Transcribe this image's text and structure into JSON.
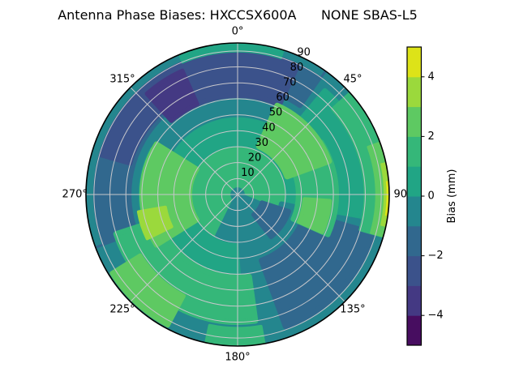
{
  "title": "Antenna Phase Biases: HXCCSX600A      NONE SBAS-L5",
  "chart_data": {
    "type": "heatmap",
    "subtype": "polar-filled-contour",
    "title": "Antenna Phase Biases: HXCCSX600A      NONE SBAS-L5",
    "angle_ticks": [
      {
        "deg": 0,
        "label": "0°"
      },
      {
        "deg": 45,
        "label": "45°"
      },
      {
        "deg": 90,
        "label": "90"
      },
      {
        "deg": 135,
        "label": "135°"
      },
      {
        "deg": 180,
        "label": "180°"
      },
      {
        "deg": 225,
        "label": "225°"
      },
      {
        "deg": 270,
        "label": "270°"
      },
      {
        "deg": 315,
        "label": "315°"
      }
    ],
    "radial_ticks": [
      {
        "value": 10,
        "label": "10"
      },
      {
        "value": 20,
        "label": "20"
      },
      {
        "value": 30,
        "label": "30"
      },
      {
        "value": 40,
        "label": "40"
      },
      {
        "value": 50,
        "label": "50"
      },
      {
        "value": 60,
        "label": "60"
      },
      {
        "value": 70,
        "label": "70"
      },
      {
        "value": 80,
        "label": "80"
      },
      {
        "value": 90,
        "label": "90"
      }
    ],
    "r_axis_max": 95,
    "grid": true,
    "grid_color": "#c7c7cb",
    "colorbar": {
      "label": "Bias (mm)",
      "range": [
        -5,
        5
      ],
      "tick_values": [
        4,
        2,
        0,
        -2,
        -4
      ],
      "tick_labels": [
        "4",
        "2",
        "0",
        "−2",
        "−4"
      ],
      "n_bands": 10,
      "band_colors": [
        "#470d60",
        "#443983",
        "#3b528b",
        "#31688e",
        "#24868e",
        "#21a585",
        "#35b779",
        "#5ec962",
        "#9bd93c",
        "#dde318"
      ],
      "band_centers_value": [
        -4.5,
        -3.5,
        -2.5,
        -1.5,
        -0.5,
        0.5,
        1.5,
        2.5,
        3.5,
        4.5
      ]
    },
    "features": [
      {
        "az": [
          0,
          360
        ],
        "r": [
          0,
          95
        ],
        "band": 4,
        "soften": 0,
        "name": "base-disk"
      },
      {
        "az": [
          0,
          360
        ],
        "r": [
          0,
          62
        ],
        "band": 5,
        "soften": 0,
        "name": "mid-disk"
      },
      {
        "az": [
          0,
          360
        ],
        "r": [
          0,
          30
        ],
        "band": 6,
        "soften": 0,
        "name": "inner-disk"
      },
      {
        "az": [
          300,
          390
        ],
        "r": [
          50,
          66
        ],
        "band": 4,
        "soften": 6,
        "name": "north-inner-transition"
      },
      {
        "az": [
          102,
          176
        ],
        "r": [
          28,
          95
        ],
        "band": 4,
        "soften": 6,
        "name": "southeast-region"
      },
      {
        "az": [
          112,
          206
        ],
        "r": [
          0,
          29
        ],
        "band": 4,
        "soften": 6,
        "name": "center-south-blob"
      },
      {
        "az": [
          108,
          142
        ],
        "r": [
          16,
          34
        ],
        "band": 3,
        "soften": 5,
        "name": "center-southeast-core"
      },
      {
        "az": [
          250,
          395
        ],
        "r": [
          68,
          95
        ],
        "band": 3,
        "soften": 6,
        "name": "north-west-outer-band"
      },
      {
        "az": [
          322,
          385
        ],
        "r": [
          62,
          90
        ],
        "band": 2,
        "soften": 6,
        "name": "north-dark-arc"
      },
      {
        "az": [
          286,
          324
        ],
        "r": [
          70,
          90
        ],
        "band": 2,
        "soften": 5,
        "name": "west-dark-arc"
      },
      {
        "az": [
          318,
          336
        ],
        "r": [
          62,
          85
        ],
        "band": 1,
        "soften": 5,
        "name": "northwest-purple-core"
      },
      {
        "az": [
          250,
          395
        ],
        "r": [
          90.5,
          95
        ],
        "band": 4,
        "soften": 0,
        "name": "north-rim-restore"
      },
      {
        "az": [
          337,
          378
        ],
        "r": [
          89,
          95
        ],
        "band": 5,
        "soften": 0,
        "name": "top-rim"
      },
      {
        "az": [
          40,
          100
        ],
        "r": [
          58,
          85
        ],
        "band": 5,
        "soften": 6,
        "name": "east-mid-band"
      },
      {
        "az": [
          106,
          160
        ],
        "r": [
          44,
          88
        ],
        "band": 3,
        "soften": 7,
        "name": "southeast-dark-band"
      },
      {
        "az": [
          48,
          106
        ],
        "r": [
          80,
          95
        ],
        "band": 6,
        "soften": 4,
        "name": "east-rim-green"
      },
      {
        "az": [
          70,
          106
        ],
        "r": [
          87,
          95
        ],
        "band": 7,
        "soften": 3,
        "name": "east-rim-lightgreen"
      },
      {
        "az": [
          78,
          102
        ],
        "r": [
          92,
          95
        ],
        "band": 8,
        "soften": 2,
        "name": "east-rim-yellowgreen"
      },
      {
        "az": [
          85,
          98
        ],
        "r": [
          93.5,
          95
        ],
        "band": 9,
        "soften": 1,
        "name": "east-rim-yellow"
      },
      {
        "az": [
          58,
          114
        ],
        "r": [
          38,
          62
        ],
        "band": 6,
        "soften": 6,
        "name": "northeast-green-arc"
      },
      {
        "az": [
          24,
          70
        ],
        "r": [
          33,
          61
        ],
        "band": 7,
        "soften": 7,
        "name": "northeast-lightgreen-crescent"
      },
      {
        "az": [
          94,
          114
        ],
        "r": [
          42,
          58
        ],
        "band": 7,
        "soften": 5,
        "name": "east-lightgreen-patch"
      },
      {
        "az": [
          172,
          252
        ],
        "r": [
          52,
          80
        ],
        "band": 6,
        "soften": 7,
        "name": "southwest-green-ring"
      },
      {
        "az": [
          208,
          238
        ],
        "r": [
          72,
          93
        ],
        "band": 7,
        "soften": 5,
        "name": "southwest-rim-lightgreen"
      },
      {
        "az": [
          170,
          192
        ],
        "r": [
          84,
          95
        ],
        "band": 6,
        "soften": 4,
        "name": "south-rim-green"
      },
      {
        "az": [
          238,
          302
        ],
        "r": [
          30,
          60
        ],
        "band": 7,
        "soften": 6,
        "name": "west-lightgreen-crescent"
      },
      {
        "az": [
          244,
          260
        ],
        "r": [
          46,
          63
        ],
        "band": 8,
        "soften": 4,
        "name": "west-yellowgreen-sliver"
      },
      {
        "az": [
          0,
          360
        ],
        "r": [
          0,
          4.5
        ],
        "band": 4,
        "soften": 0,
        "name": "center-dot"
      }
    ]
  }
}
